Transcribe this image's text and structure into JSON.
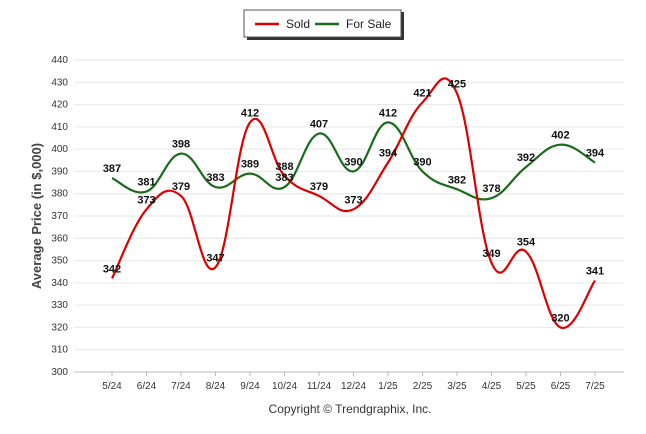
{
  "chart_data": {
    "type": "line",
    "categories": [
      "5/24",
      "6/24",
      "7/24",
      "8/24",
      "9/24",
      "10/24",
      "11/24",
      "12/24",
      "1/25",
      "2/25",
      "3/25",
      "4/25",
      "5/25",
      "6/25",
      "7/25"
    ],
    "series": [
      {
        "name": "Sold",
        "color": "#dd0000",
        "values": [
          342,
          373,
          379,
          347,
          412,
          388,
          379,
          373,
          394,
          421,
          425,
          349,
          354,
          320,
          341
        ]
      },
      {
        "name": "For Sale",
        "color": "#1a6b1a",
        "values": [
          387,
          381,
          398,
          383,
          389,
          383,
          407,
          390,
          412,
          390,
          382,
          378,
          392,
          402,
          394
        ]
      }
    ],
    "ylabel": "Average Price (in $,000)",
    "ylim": [
      300,
      440
    ],
    "yticks": [
      300,
      310,
      320,
      330,
      340,
      350,
      360,
      370,
      380,
      390,
      400,
      410,
      420,
      430,
      440
    ],
    "grid": true,
    "legend_position": "top-center"
  },
  "credit": "Copyright © Trendgraphix, Inc."
}
